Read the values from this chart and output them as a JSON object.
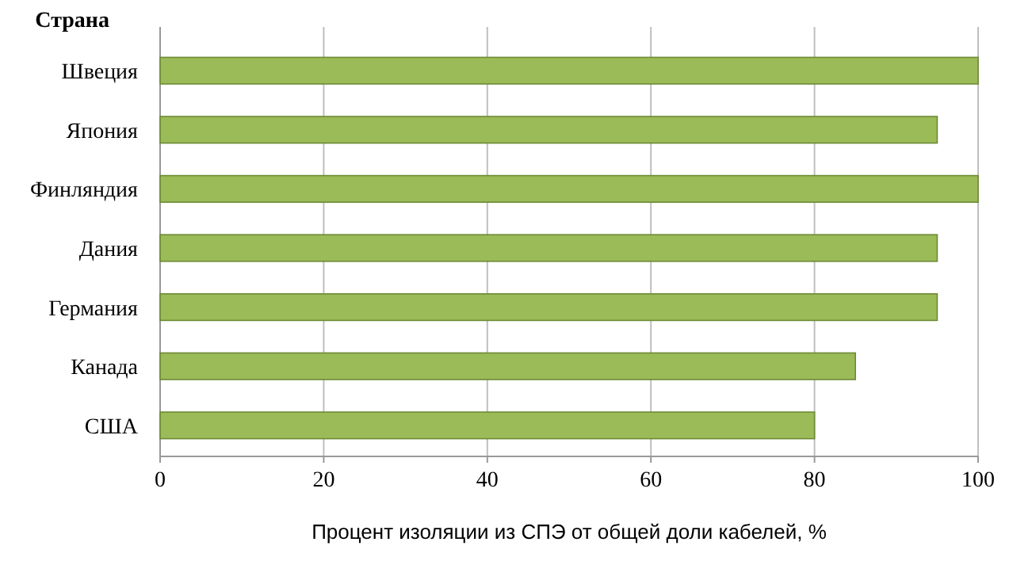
{
  "chart_data": {
    "type": "bar",
    "orientation": "horizontal",
    "ylabel": "Страна",
    "xlabel": "Процент изоляции из СПЭ от общей доли кабелей, %",
    "categories": [
      "Швеция",
      "Япония",
      "Финляндия",
      "Дания",
      "Германия",
      "Канада",
      "США"
    ],
    "values": [
      100,
      95,
      100,
      95,
      95,
      85,
      80
    ],
    "color": "#9bbb59",
    "xlim": [
      0,
      100
    ],
    "xticks": [
      0,
      20,
      40,
      60,
      80,
      100
    ],
    "grid": "x"
  }
}
